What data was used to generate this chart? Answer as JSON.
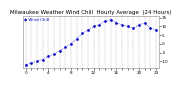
{
  "title": "Milwaukee Weather Wind Chill  Hourly Average  (24 Hours)",
  "hours": [
    0,
    1,
    2,
    3,
    4,
    5,
    6,
    7,
    8,
    9,
    10,
    11,
    12,
    13,
    14,
    15,
    16,
    17,
    18,
    19,
    20,
    21,
    22,
    23
  ],
  "wind_chill": [
    -12,
    -11,
    -10,
    -9,
    -7,
    -6,
    -4,
    -2,
    0,
    3,
    6,
    8,
    10,
    11,
    13,
    14,
    12,
    11,
    10,
    9,
    11,
    12,
    9,
    8
  ],
  "line_color": "#0000cc",
  "grid_color": "#999999",
  "bg_color": "#ffffff",
  "text_color": "#000000",
  "ylim": [
    -14,
    16
  ],
  "yticks": [
    -10,
    -5,
    0,
    5,
    10,
    15
  ],
  "ytick_labels": [
    "-10",
    "-5",
    "0",
    "5",
    "10",
    "15"
  ],
  "xticks": [
    0,
    1,
    2,
    3,
    4,
    5,
    6,
    7,
    8,
    9,
    10,
    11,
    12,
    13,
    14,
    15,
    16,
    17,
    18,
    19,
    20,
    21,
    22,
    23
  ],
  "xtick_labels": [
    "0",
    "",
    "",
    "",
    "4",
    "",
    "",
    "",
    "8",
    "",
    "",
    "",
    "12",
    "",
    "",
    "",
    "16",
    "",
    "",
    "",
    "20",
    "",
    "",
    "23"
  ],
  "title_fontsize": 4.0,
  "tick_fontsize": 3.0,
  "markersize": 1.8,
  "linestyle": ":"
}
